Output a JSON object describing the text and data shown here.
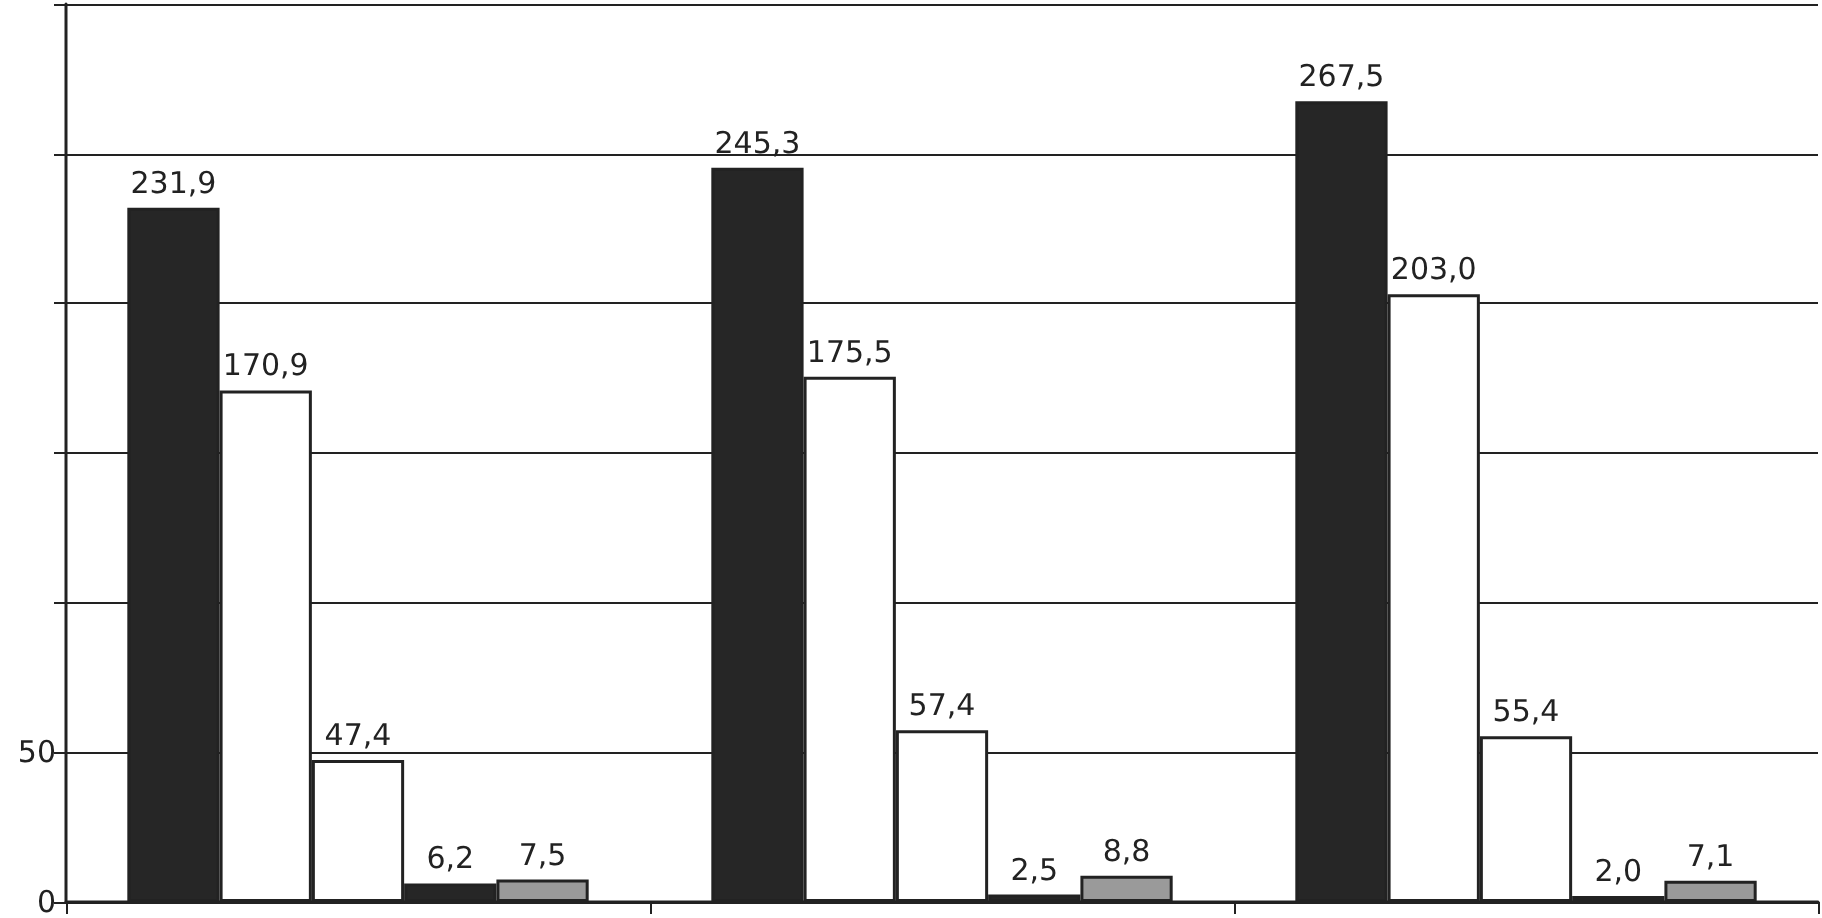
{
  "chart_data": {
    "type": "bar",
    "categories": [
      null,
      null,
      null
    ],
    "series": [
      {
        "color": "#262626",
        "values": [
          231.9,
          245.3,
          267.5
        ],
        "value_labels": [
          "231,9",
          "245,3",
          "267,5"
        ]
      },
      {
        "color": "#ffffff",
        "values": [
          170.9,
          175.5,
          203.0
        ],
        "value_labels": [
          "170,9",
          "175,5",
          "203,0"
        ]
      },
      {
        "color": "#ffffff",
        "values": [
          47.4,
          57.4,
          55.4
        ],
        "value_labels": [
          "47,4",
          "57,4",
          "55,4"
        ]
      },
      {
        "color": "#262626",
        "values": [
          6.2,
          2.5,
          2.0
        ],
        "value_labels": [
          "6,2",
          "2,5",
          "2,0"
        ]
      },
      {
        "color": "#9a9a9a",
        "values": [
          7.5,
          8.8,
          7.1
        ],
        "value_labels": [
          "7,5",
          "8,8",
          "7,1"
        ]
      }
    ],
    "ylim": [
      0,
      300
    ],
    "yticks": [
      0,
      50,
      {
        "value": 100,
        "label": null
      },
      {
        "value": 150,
        "label": null
      },
      {
        "value": 200,
        "label": null
      },
      {
        "value": 250,
        "label": null
      },
      {
        "value": 300,
        "label": null
      }
    ],
    "grid": "y"
  }
}
